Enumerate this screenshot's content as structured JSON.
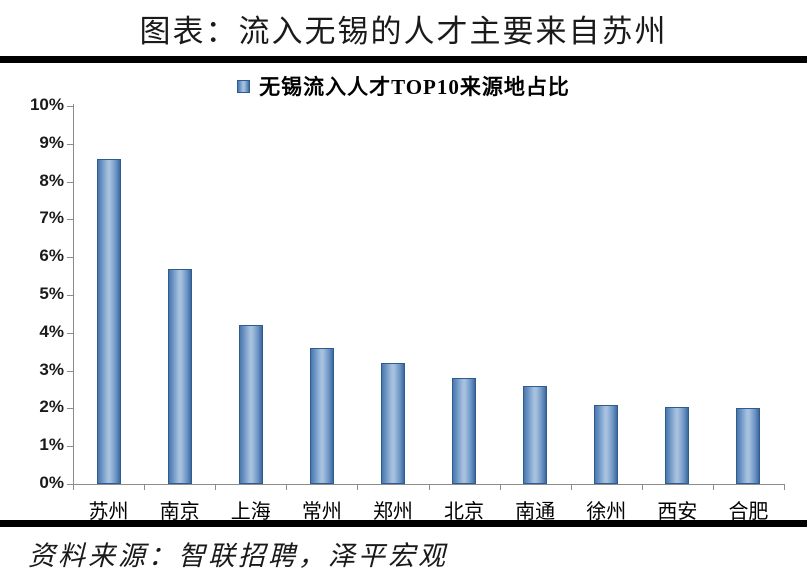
{
  "page": {
    "title": "图表：流入无锡的人才主要来自苏州",
    "source": "资料来源：智联招聘，泽平宏观"
  },
  "legend": {
    "label": "无锡流入人才TOP10来源地占比"
  },
  "chart_data": {
    "type": "bar",
    "title": "无锡流入人才TOP10来源地占比",
    "categories": [
      "苏州",
      "南京",
      "上海",
      "常州",
      "郑州",
      "北京",
      "南通",
      "徐州",
      "西安",
      "合肥"
    ],
    "values": [
      8.6,
      5.7,
      4.2,
      3.6,
      3.2,
      2.8,
      2.6,
      2.1,
      2.05,
      2.0
    ],
    "unit": "%",
    "xlabel": "",
    "ylabel": "",
    "ylim": [
      0,
      10
    ],
    "ytick_step": 1,
    "ytick_labels": [
      "0%",
      "1%",
      "2%",
      "3%",
      "4%",
      "5%",
      "6%",
      "7%",
      "8%",
      "9%",
      "10%"
    ],
    "grid": false,
    "legend_position": "top-center",
    "bar_colors": {
      "edge": "#3c699f",
      "center": "#a6c0de",
      "border": "#2e5c8f"
    }
  },
  "colors": {
    "rule": "#000000",
    "axis": "#8c8c8c",
    "text": "#000000",
    "background": "#ffffff"
  }
}
